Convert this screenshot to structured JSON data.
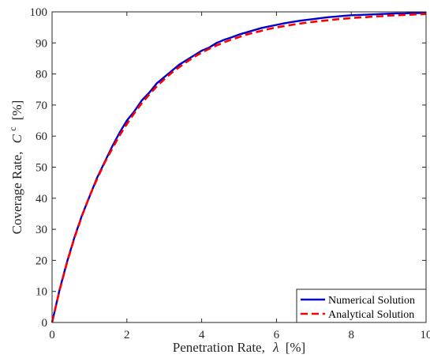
{
  "chart_data": {
    "type": "line",
    "title": "",
    "xlabel": "Penetration Rate,",
    "xlabel_symbol": "λ",
    "xlabel_unit": "[%]",
    "ylabel": "Coverage Rate,",
    "ylabel_symbol": "C",
    "ylabel_superscript": "c",
    "ylabel_unit": "[%]",
    "xlim": [
      0,
      10
    ],
    "ylim": [
      0,
      100
    ],
    "x_ticks": [
      "0",
      "2",
      "4",
      "6",
      "8",
      "10"
    ],
    "y_ticks": [
      "0",
      "10",
      "20",
      "30",
      "40",
      "50",
      "60",
      "70",
      "80",
      "90",
      "100"
    ],
    "grid": false,
    "legend_position": "bottom-right",
    "series": [
      {
        "name": "Numerical Solution",
        "color": "#0000cc",
        "style": "solid",
        "x": [
          0,
          0.2,
          0.4,
          0.6,
          0.8,
          1.0,
          1.2,
          1.4,
          1.6,
          1.8,
          2.0,
          2.2,
          2.4,
          2.6,
          2.8,
          3.0,
          3.2,
          3.4,
          3.6,
          3.8,
          4.0,
          4.2,
          4.4,
          4.6,
          4.8,
          5.0,
          5.2,
          5.4,
          5.6,
          5.8,
          6.0,
          6.2,
          6.4,
          6.6,
          6.8,
          7.0,
          7.2,
          7.4,
          7.6,
          7.8,
          8.0,
          8.2,
          8.4,
          8.6,
          8.8,
          9.0,
          9.2,
          9.4,
          9.6,
          9.8,
          10.0
        ],
        "y": [
          0,
          10.5,
          19.5,
          27.5,
          34.5,
          40.5,
          46.5,
          51.5,
          56.5,
          61.0,
          65.0,
          68.0,
          71.5,
          74.0,
          77.0,
          79.0,
          81.0,
          83.0,
          84.5,
          86.0,
          87.5,
          88.5,
          90.0,
          91.0,
          91.8,
          92.7,
          93.4,
          94.1,
          94.8,
          95.3,
          95.8,
          96.3,
          96.7,
          97.1,
          97.4,
          97.7,
          98.0,
          98.3,
          98.5,
          98.7,
          98.9,
          99.0,
          99.1,
          99.2,
          99.3,
          99.4,
          99.5,
          99.5,
          99.6,
          99.6,
          99.7
        ]
      },
      {
        "name": "Analytical Solution",
        "color": "#ff0000",
        "style": "dashed",
        "x": [
          0,
          0.2,
          0.4,
          0.6,
          0.8,
          1.0,
          1.2,
          1.4,
          1.6,
          1.8,
          2.0,
          2.2,
          2.4,
          2.6,
          2.8,
          3.0,
          3.2,
          3.4,
          3.6,
          3.8,
          4.0,
          4.2,
          4.4,
          4.6,
          4.8,
          5.0,
          5.2,
          5.4,
          5.6,
          5.8,
          6.0,
          6.2,
          6.4,
          6.6,
          6.8,
          7.0,
          7.2,
          7.4,
          7.6,
          7.8,
          8.0,
          8.2,
          8.4,
          8.6,
          8.8,
          9.0,
          9.2,
          9.4,
          9.6,
          9.8,
          10.0
        ],
        "y": [
          0,
          10.3,
          19.3,
          27.3,
          34.3,
          40.6,
          46.1,
          51.3,
          55.8,
          60.1,
          63.9,
          67.4,
          70.6,
          73.4,
          76.0,
          78.3,
          80.4,
          82.2,
          83.9,
          85.5,
          86.9,
          88.1,
          89.2,
          90.2,
          91.1,
          91.9,
          92.7,
          93.3,
          93.9,
          94.5,
          95.0,
          95.4,
          95.8,
          96.2,
          96.5,
          96.8,
          97.1,
          97.3,
          97.6,
          97.8,
          98.0,
          98.2,
          98.3,
          98.5,
          98.6,
          98.8,
          98.9,
          99.0,
          99.1,
          99.2,
          99.3
        ]
      }
    ]
  }
}
